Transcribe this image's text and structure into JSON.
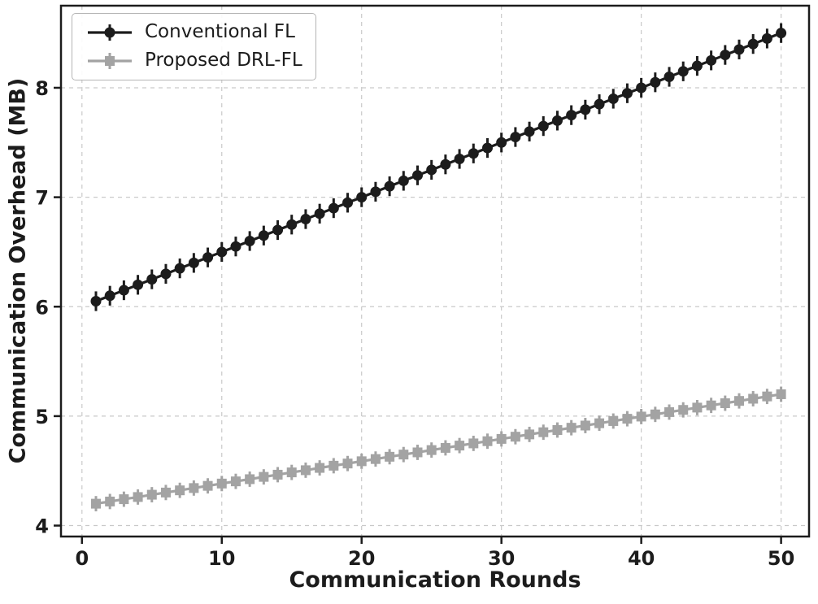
{
  "chart_data": {
    "type": "line",
    "title": "",
    "xlabel": "Communication Rounds",
    "ylabel": "Communication Overhead (MB)",
    "grid": true,
    "grid_style": "dashed",
    "legend_position": "upper left",
    "xticks": [
      0,
      10,
      20,
      30,
      40,
      50
    ],
    "yticks": [
      4,
      5,
      6,
      7,
      8
    ],
    "xlim": [
      -1.5,
      52
    ],
    "ylim": [
      3.9,
      8.75
    ],
    "colors": {
      "axis": "#1c1c1c",
      "grid": "#c9c9c9",
      "background": "#ffffff"
    },
    "x": [
      1,
      2,
      3,
      4,
      5,
      6,
      7,
      8,
      9,
      10,
      11,
      12,
      13,
      14,
      15,
      16,
      17,
      18,
      19,
      20,
      21,
      22,
      23,
      24,
      25,
      26,
      27,
      28,
      29,
      30,
      31,
      32,
      33,
      34,
      35,
      36,
      37,
      38,
      39,
      40,
      41,
      42,
      43,
      44,
      45,
      46,
      47,
      48,
      49,
      50
    ],
    "series": [
      {
        "name": "Conventional FL",
        "color": "#1c1c1c",
        "marker": "circle",
        "yerr": 0.09,
        "values": [
          6.05,
          6.1,
          6.15,
          6.2,
          6.25,
          6.3,
          6.35,
          6.4,
          6.45,
          6.5,
          6.55,
          6.6,
          6.65,
          6.7,
          6.75,
          6.8,
          6.85,
          6.9,
          6.95,
          7.0,
          7.05,
          7.1,
          7.15,
          7.2,
          7.25,
          7.3,
          7.35,
          7.4,
          7.45,
          7.5,
          7.55,
          7.6,
          7.65,
          7.7,
          7.75,
          7.8,
          7.85,
          7.9,
          7.95,
          8.0,
          8.05,
          8.1,
          8.15,
          8.2,
          8.25,
          8.3,
          8.35,
          8.4,
          8.45,
          8.5
        ]
      },
      {
        "name": "Proposed DRL-FL",
        "color": "#a3a3a3",
        "marker": "square",
        "yerr": 0.07,
        "values": [
          4.2,
          4.22,
          4.241,
          4.261,
          4.282,
          4.302,
          4.322,
          4.343,
          4.363,
          4.384,
          4.404,
          4.424,
          4.445,
          4.465,
          4.486,
          4.506,
          4.527,
          4.547,
          4.567,
          4.588,
          4.608,
          4.629,
          4.649,
          4.669,
          4.69,
          4.71,
          4.731,
          4.751,
          4.771,
          4.792,
          4.812,
          4.833,
          4.853,
          4.873,
          4.894,
          4.914,
          4.935,
          4.955,
          4.976,
          4.996,
          5.016,
          5.037,
          5.057,
          5.078,
          5.098,
          5.118,
          5.139,
          5.159,
          5.18,
          5.2
        ]
      }
    ]
  }
}
